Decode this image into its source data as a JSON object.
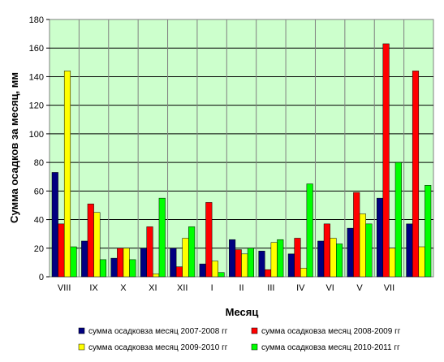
{
  "chart_data": {
    "type": "bar",
    "title": "",
    "xlabel": "Месяц",
    "ylabel": "Сумма осадков за месяц, мм",
    "ylim": [
      0,
      180
    ],
    "yticks": [
      0,
      20,
      40,
      60,
      80,
      100,
      120,
      140,
      160,
      180
    ],
    "grid": true,
    "legend_position": "bottom",
    "plot_background": "#ccffcc",
    "categories": [
      "VIII",
      "IX",
      "X",
      "XI",
      "XII",
      "I",
      "II",
      "III",
      "IV",
      "VI",
      "V",
      "VII",
      ""
    ],
    "series": [
      {
        "name": "сумма осадковза месяц 2007-2008 гг",
        "color": "#000080",
        "values": [
          73,
          25,
          13,
          20,
          20,
          9,
          26,
          18,
          16,
          25,
          34,
          55,
          37
        ]
      },
      {
        "name": "сумма осадковза месяц 2008-2009 гг",
        "color": "#ff0000",
        "values": [
          37,
          51,
          20,
          35,
          7,
          52,
          19,
          5,
          27,
          37,
          59,
          163,
          144
        ]
      },
      {
        "name": "сумма осадковза месяц 2009-2010 гг",
        "color": "#ffff00",
        "values": [
          144,
          45,
          20,
          2,
          27,
          11,
          16,
          24,
          6,
          27,
          44,
          20,
          21
        ]
      },
      {
        "name": "сумма осадковза месяц 2010-2011 гг",
        "color": "#00ff00",
        "values": [
          21,
          12,
          12,
          55,
          35,
          3,
          20,
          26,
          65,
          23,
          37,
          80,
          64
        ]
      }
    ]
  }
}
